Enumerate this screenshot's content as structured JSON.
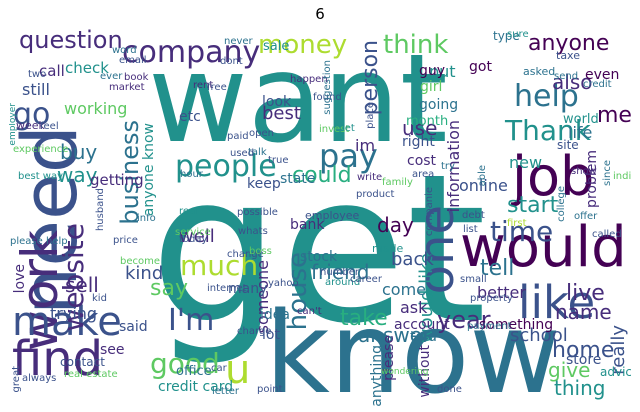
{
  "title": "6",
  "palette": [
    "#440154",
    "#472d7b",
    "#3b528b",
    "#2c728e",
    "#21918c",
    "#28ae80",
    "#5ec962",
    "#addc30"
  ],
  "words": [
    {
      "text": "want",
      "color": "#21918c"
    },
    {
      "text": "get",
      "color": "#21918c"
    },
    {
      "text": "know",
      "color": "#2c728e"
    },
    {
      "text": "need",
      "color": "#3b528b"
    },
    {
      "text": "work",
      "color": "#472d7b"
    },
    {
      "text": "would",
      "color": "#440154"
    },
    {
      "text": "like",
      "color": "#3b528b"
    },
    {
      "text": "job",
      "color": "#440154"
    },
    {
      "text": "find",
      "color": "#472d7b"
    },
    {
      "text": "make",
      "color": "#3b528b"
    },
    {
      "text": "one",
      "color": "#3b528b"
    },
    {
      "text": "company",
      "color": "#472d7b"
    },
    {
      "text": "people",
      "color": "#21918c"
    },
    {
      "text": "money",
      "color": "#addc30"
    },
    {
      "text": "think",
      "color": "#5ec962"
    },
    {
      "text": "help",
      "color": "#2c728e"
    },
    {
      "text": "Thank",
      "color": "#21918c"
    },
    {
      "text": "pay",
      "color": "#2c728e"
    },
    {
      "text": "question",
      "color": "#472d7b"
    },
    {
      "text": "time",
      "color": "#3b528b"
    },
    {
      "text": "website",
      "color": "#472d7b"
    },
    {
      "text": "business",
      "color": "#2c728e"
    },
    {
      "text": "much",
      "color": "#addc30"
    },
    {
      "text": "I'm",
      "color": "#3b528b"
    },
    {
      "text": "u",
      "color": "#addc30"
    },
    {
      "text": "good",
      "color": "#5ec962"
    },
    {
      "text": "house",
      "color": "#2c728e"
    },
    {
      "text": "year",
      "color": "#472d7b"
    },
    {
      "text": "go",
      "color": "#3b528b"
    },
    {
      "text": "anyone",
      "color": "#440154"
    },
    {
      "text": "also",
      "color": "#472d7b"
    },
    {
      "text": "start",
      "color": "#21918c"
    },
    {
      "text": "could",
      "color": "#28ae80"
    },
    {
      "text": "person",
      "color": "#3b528b"
    },
    {
      "text": "tell",
      "color": "#2c728e"
    },
    {
      "text": "say",
      "color": "#5ec962"
    },
    {
      "text": "take",
      "color": "#28ae80"
    },
    {
      "text": "home",
      "color": "#3b528b"
    },
    {
      "text": "live",
      "color": "#472d7b"
    },
    {
      "text": "mean",
      "color": "#440154"
    },
    {
      "text": "name",
      "color": "#472d7b"
    },
    {
      "text": "give",
      "color": "#5ec962"
    },
    {
      "text": "thing",
      "color": "#21918c"
    },
    {
      "text": "friend",
      "color": "#2c728e"
    },
    {
      "text": "would like",
      "color": "#21918c"
    },
    {
      "text": "answer",
      "color": "#2c728e"
    },
    {
      "text": "use",
      "color": "#472d7b"
    },
    {
      "text": "sell",
      "color": "#472d7b"
    },
    {
      "text": "buy",
      "color": "#2c728e"
    },
    {
      "text": "way",
      "color": "#21918c"
    },
    {
      "text": "best",
      "color": "#472d7b"
    },
    {
      "text": "kind",
      "color": "#3b528b"
    },
    {
      "text": "someone",
      "color": "#472d7b"
    },
    {
      "text": "day",
      "color": "#440154"
    },
    {
      "text": "put",
      "color": "#21918c"
    },
    {
      "text": "well",
      "color": "#472d7b"
    },
    {
      "text": "back",
      "color": "#3b528b"
    },
    {
      "text": "come",
      "color": "#2c728e"
    },
    {
      "text": "ask",
      "color": "#472d7b"
    },
    {
      "text": "school",
      "color": "#3b528b"
    },
    {
      "text": "really",
      "color": "#3b528b"
    },
    {
      "text": "better",
      "color": "#472d7b"
    },
    {
      "text": "online",
      "color": "#3b528b"
    },
    {
      "text": "new",
      "color": "#21918c"
    },
    {
      "text": "life",
      "color": "#2c728e"
    },
    {
      "text": "information",
      "color": "#472d7b"
    },
    {
      "text": "anyone know",
      "color": "#21918c"
    },
    {
      "text": "got",
      "color": "#440154"
    },
    {
      "text": "still",
      "color": "#3b528b"
    },
    {
      "text": "call",
      "color": "#472d7b"
    },
    {
      "text": "check",
      "color": "#21918c"
    },
    {
      "text": "working",
      "color": "#5ec962"
    },
    {
      "text": "getting",
      "color": "#472d7b"
    },
    {
      "text": "look",
      "color": "#3b528b"
    },
    {
      "text": "guy",
      "color": "#440154"
    },
    {
      "text": "going",
      "color": "#2c728e"
    },
    {
      "text": "girl",
      "color": "#5ec962"
    },
    {
      "text": "month",
      "color": "#28ae80"
    },
    {
      "text": "right",
      "color": "#3b528b"
    },
    {
      "text": "cost",
      "color": "#472d7b"
    },
    {
      "text": "im",
      "color": "#472d7b"
    },
    {
      "text": "keep",
      "color": "#3b528b"
    },
    {
      "text": "state",
      "color": "#2c728e"
    },
    {
      "text": "bank",
      "color": "#472d7b"
    },
    {
      "text": "stock",
      "color": "#2c728e"
    },
    {
      "text": "made",
      "color": "#21918c"
    },
    {
      "text": "idea",
      "color": "#2c728e"
    },
    {
      "text": "lot",
      "color": "#3b528b"
    },
    {
      "text": "many",
      "color": "#3b528b"
    },
    {
      "text": "see",
      "color": "#472d7b"
    },
    {
      "text": "said",
      "color": "#3b528b"
    },
    {
      "text": "love",
      "color": "#472d7b"
    },
    {
      "text": "trying",
      "color": "#3b528b"
    },
    {
      "text": "anything",
      "color": "#2c728e"
    },
    {
      "text": "please",
      "color": "#472d7b"
    },
    {
      "text": "told",
      "color": "#2c728e"
    },
    {
      "text": "without",
      "color": "#472d7b"
    },
    {
      "text": "account",
      "color": "#472d7b"
    },
    {
      "text": "something",
      "color": "#440154"
    },
    {
      "text": "problem",
      "color": "#472d7b"
    },
    {
      "text": "world",
      "color": "#21918c"
    },
    {
      "text": "even",
      "color": "#440154"
    },
    {
      "text": "site",
      "color": "#3b528b"
    },
    {
      "text": "credit card",
      "color": "#21918c"
    },
    {
      "text": "office",
      "color": "#2c728e"
    },
    {
      "text": "contact",
      "color": "#3b528b"
    },
    {
      "text": "store",
      "color": "#3b528b"
    },
    {
      "text": "advice",
      "color": "#21918c"
    },
    {
      "text": "etc",
      "color": "#3b528b"
    },
    {
      "text": "sale",
      "color": "#21918c"
    },
    {
      "text": "type",
      "color": "#2c728e"
    },
    {
      "text": "word",
      "color": "#2c728e"
    },
    {
      "text": "email",
      "color": "#3b528b"
    },
    {
      "text": "book",
      "color": "#472d7b"
    },
    {
      "text": "market",
      "color": "#472d7b"
    },
    {
      "text": "dont",
      "color": "#3b528b"
    },
    {
      "text": "never",
      "color": "#2c728e"
    },
    {
      "text": "ever",
      "color": "#2c728e"
    },
    {
      "text": "two",
      "color": "#3b528b"
    },
    {
      "text": "asked",
      "color": "#2c728e"
    },
    {
      "text": "credit",
      "color": "#2c728e"
    },
    {
      "text": "sure",
      "color": "#21918c"
    },
    {
      "text": "taxe",
      "color": "#3b528b"
    },
    {
      "text": "send",
      "color": "#2c728e"
    },
    {
      "text": "happen",
      "color": "#472d7b"
    },
    {
      "text": "found",
      "color": "#3b528b"
    },
    {
      "text": "suggestion",
      "color": "#2c728e"
    },
    {
      "text": "open",
      "color": "#3b528b"
    },
    {
      "text": "invest",
      "color": "#5ec962"
    },
    {
      "text": "let",
      "color": "#21918c"
    },
    {
      "text": "paid",
      "color": "#3b528b"
    },
    {
      "text": "talk",
      "color": "#2c728e"
    },
    {
      "text": "true",
      "color": "#3b528b"
    },
    {
      "text": "used",
      "color": "#3b528b"
    },
    {
      "text": "hour",
      "color": "#2c728e"
    },
    {
      "text": "area",
      "color": "#3b528b"
    },
    {
      "text": "family",
      "color": "#5ec962"
    },
    {
      "text": "real",
      "color": "#21918c"
    },
    {
      "text": "possible",
      "color": "#3b528b"
    },
    {
      "text": "write",
      "color": "#472d7b"
    },
    {
      "text": "product",
      "color": "#3b528b"
    },
    {
      "text": "whats",
      "color": "#3b528b"
    },
    {
      "text": "employee",
      "color": "#3b528b"
    },
    {
      "text": "service",
      "color": "#5ec962"
    },
    {
      "text": "today",
      "color": "#3b528b"
    },
    {
      "text": "price",
      "color": "#3b528b"
    },
    {
      "text": "please help",
      "color": "#2c728e"
    },
    {
      "text": "best way",
      "color": "#21918c"
    },
    {
      "text": "experience",
      "color": "#5ec962"
    },
    {
      "text": "week",
      "color": "#472d7b"
    },
    {
      "text": "feel",
      "color": "#3b528b"
    },
    {
      "text": "employer",
      "color": "#21918c"
    },
    {
      "text": "husband",
      "color": "#3b528b"
    },
    {
      "text": "info",
      "color": "#2c728e"
    },
    {
      "text": "become",
      "color": "#5ec962"
    },
    {
      "text": "kid",
      "color": "#3b528b"
    },
    {
      "text": "change",
      "color": "#3b528b"
    },
    {
      "text": "boss",
      "color": "#5ec962"
    },
    {
      "text": "yahoo",
      "color": "#3b528b"
    },
    {
      "text": "internet",
      "color": "#3b528b"
    },
    {
      "text": "charge",
      "color": "#3b528b"
    },
    {
      "text": "car",
      "color": "#3b528b"
    },
    {
      "text": "letter",
      "color": "#2c728e"
    },
    {
      "text": "point",
      "color": "#3b528b"
    },
    {
      "text": "real estate",
      "color": "#5ec962"
    },
    {
      "text": "always",
      "color": "#3b528b"
    },
    {
      "text": "great",
      "color": "#3b528b"
    },
    {
      "text": "can't",
      "color": "#472d7b"
    },
    {
      "text": "around",
      "color": "#21918c"
    },
    {
      "text": "number",
      "color": "#3b528b"
    },
    {
      "text": "career",
      "color": "#3b528b"
    },
    {
      "text": "wondering",
      "color": "#5ec962"
    },
    {
      "text": "done",
      "color": "#3b528b"
    },
    {
      "text": "payment",
      "color": "#2c728e"
    },
    {
      "text": "small",
      "color": "#3b528b"
    },
    {
      "text": "property",
      "color": "#3b528b"
    },
    {
      "text": "list",
      "color": "#3b528b"
    },
    {
      "text": "first",
      "color": "#addc30"
    },
    {
      "text": "debt",
      "color": "#3b528b"
    },
    {
      "text": "offer",
      "color": "#2c728e"
    },
    {
      "text": "called",
      "color": "#3b528b"
    },
    {
      "text": "college",
      "color": "#2c728e"
    },
    {
      "text": "show",
      "color": "#472d7b"
    },
    {
      "text": "since",
      "color": "#2c728e"
    },
    {
      "text": "india",
      "color": "#5ec962"
    },
    {
      "text": "companie",
      "color": "#3b528b"
    },
    {
      "text": "able",
      "color": "#2c728e"
    },
    {
      "text": "rent",
      "color": "#472d7b"
    },
    {
      "text": "free",
      "color": "#3b528b"
    },
    {
      "text": "try",
      "color": "#2c728e"
    },
    {
      "text": "place",
      "color": "#3b528b"
    }
  ]
}
